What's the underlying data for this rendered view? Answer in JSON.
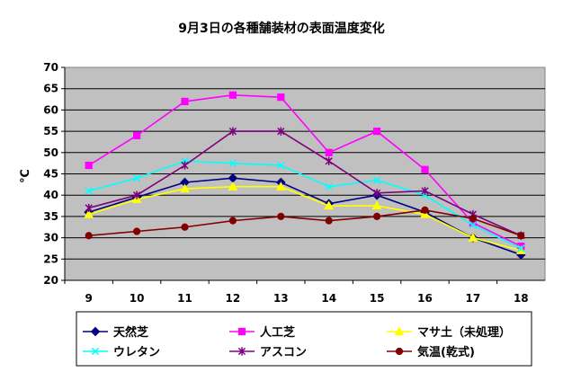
{
  "chart_data": {
    "type": "line",
    "title": "9月3日の各種舗装材の表面温度変化",
    "xlabel": "",
    "ylabel": "℃",
    "x": [
      9,
      10,
      11,
      12,
      13,
      14,
      15,
      16,
      17,
      18
    ],
    "ylim": [
      20,
      70
    ],
    "yticks": [
      20,
      25,
      30,
      35,
      40,
      45,
      50,
      55,
      60,
      65,
      70
    ],
    "grid": true,
    "legend_position": "bottom",
    "series": [
      {
        "name": "天然芝",
        "color": "#000080",
        "marker": "diamond",
        "values": [
          36,
          39.5,
          43,
          44,
          43,
          38,
          40,
          36,
          30,
          26
        ]
      },
      {
        "name": "人工芝",
        "color": "#FF00FF",
        "marker": "square",
        "values": [
          47,
          54,
          62,
          63.5,
          63,
          50,
          55,
          46,
          33.5,
          28
        ]
      },
      {
        "name": "マサ土（未処理）",
        "color": "#FFFF00",
        "marker": "triangle",
        "values": [
          35.5,
          39,
          41.5,
          42,
          42,
          37.5,
          37.5,
          35.5,
          30,
          27
        ]
      },
      {
        "name": "ウレタン",
        "color": "#00FFFF",
        "marker": "x",
        "values": [
          41,
          44,
          48,
          47.5,
          47,
          42,
          43.5,
          40,
          33,
          27.5
        ]
      },
      {
        "name": "アスコン",
        "color": "#800080",
        "marker": "star",
        "values": [
          37,
          40,
          47,
          55,
          55,
          48,
          40.5,
          41,
          35.5,
          30.5
        ]
      },
      {
        "name": "気温(乾式)",
        "color": "#800000",
        "marker": "circle",
        "values": [
          30.5,
          31.5,
          32.5,
          34,
          35,
          34,
          35,
          36.5,
          34.5,
          30.5
        ]
      }
    ]
  }
}
